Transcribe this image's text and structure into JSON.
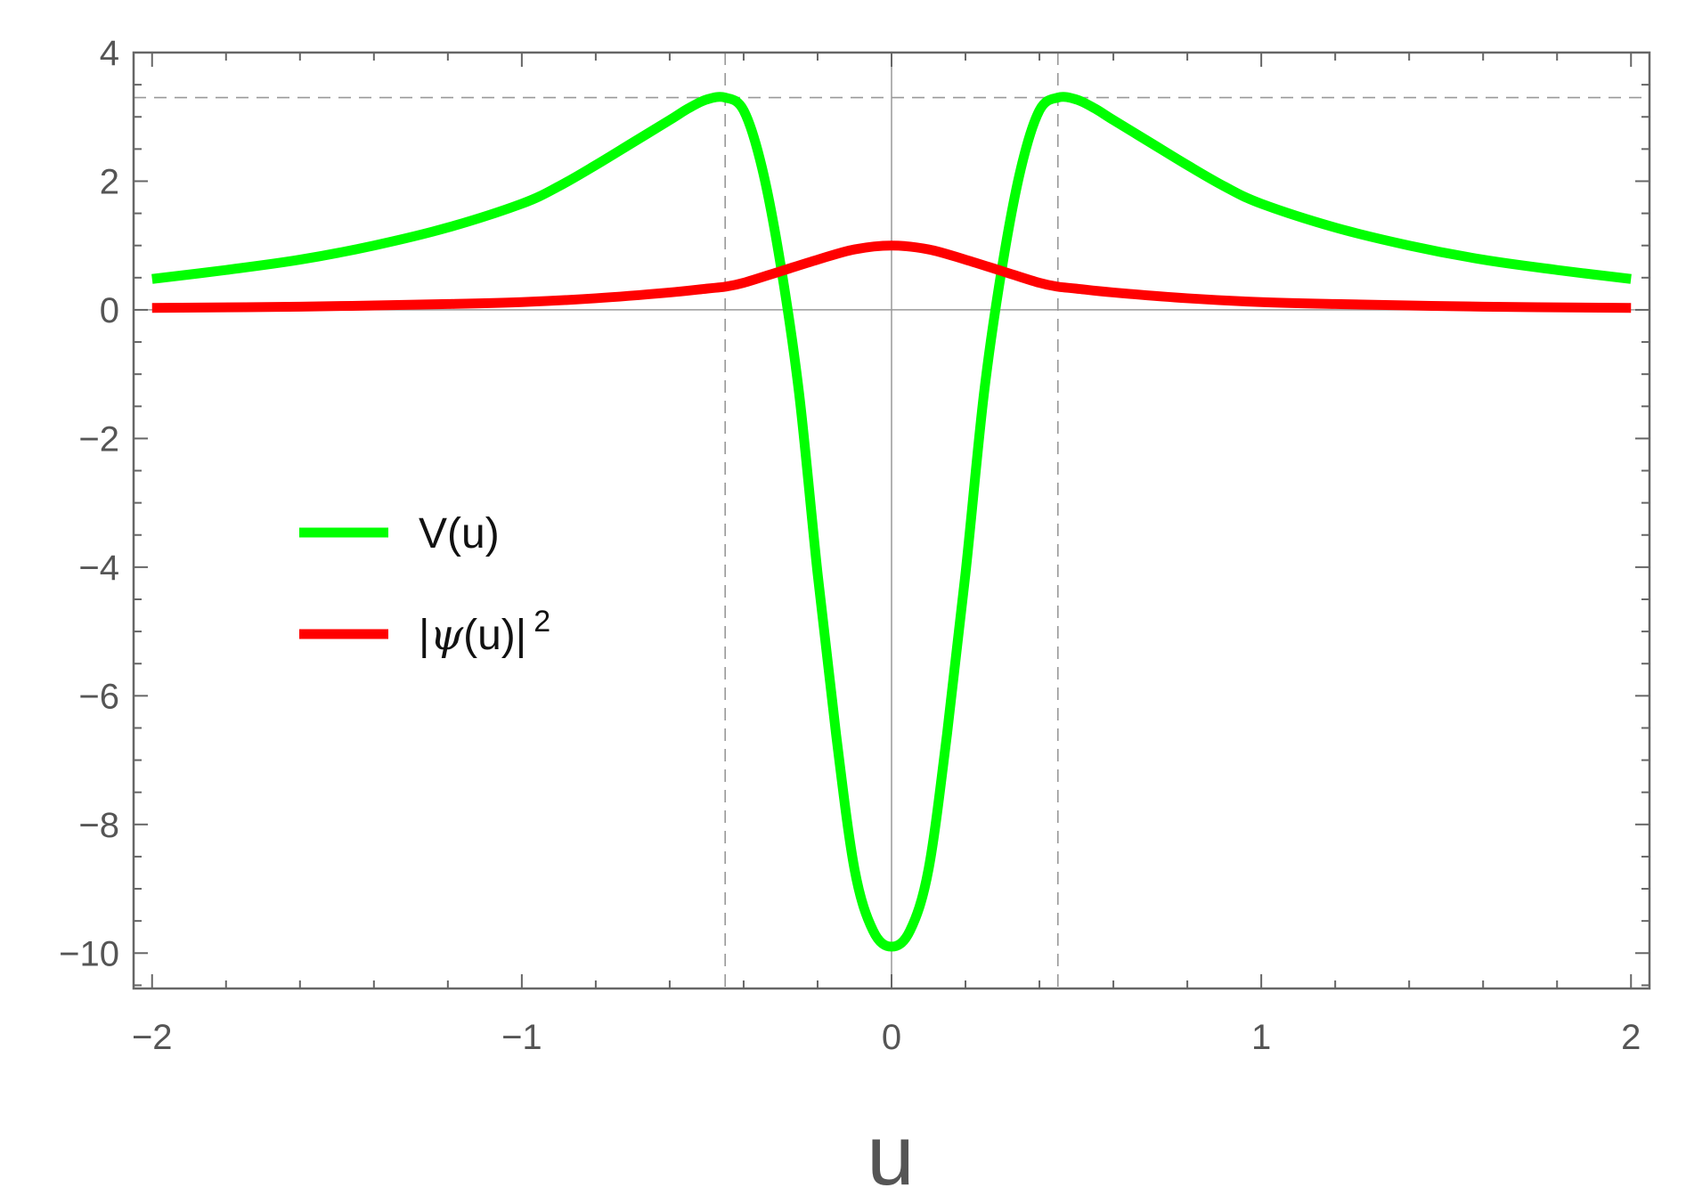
{
  "chart_data": {
    "type": "line",
    "xlabel": "u",
    "ylabel": "",
    "xlim": [
      -2.05,
      2.05
    ],
    "ylim": [
      -10.55,
      4.0
    ],
    "x_ticks": [
      -2,
      -1,
      0,
      1,
      2
    ],
    "x_tick_labels": [
      "−2",
      "−1",
      "0",
      "1",
      "2"
    ],
    "y_ticks": [
      4,
      2,
      0,
      -2,
      -4,
      -6,
      -8,
      -10
    ],
    "y_tick_labels": [
      "4",
      "2",
      "0",
      "−2",
      "−4",
      "−6",
      "−8",
      "−10"
    ],
    "x_minor_step": 0.2,
    "y_minor_step": 0.5,
    "grid": false,
    "legend": {
      "position": "center-left",
      "entries": [
        {
          "label": "V(u)",
          "color": "#00ff00"
        },
        {
          "label_parts": [
            "|",
            "ψ",
            "(u)|",
            "2"
          ],
          "color": "#ff0000"
        }
      ]
    },
    "reference_lines": {
      "vertical_x": [
        -0.45,
        0.45
      ],
      "horizontal_y": [
        3.3
      ],
      "style": "dashed",
      "color": "#999999"
    },
    "series": [
      {
        "color": "#00ff00",
        "x": [
          -2.0,
          -1.8,
          -1.6,
          -1.4,
          -1.2,
          -1.0,
          -0.9,
          -0.8,
          -0.7,
          -0.6,
          -0.55,
          -0.5,
          -0.45,
          -0.4,
          -0.35,
          -0.3,
          -0.25,
          -0.2,
          -0.15,
          -0.1,
          -0.05,
          0.0,
          0.05,
          0.1,
          0.15,
          0.2,
          0.25,
          0.3,
          0.35,
          0.4,
          0.45,
          0.5,
          0.55,
          0.6,
          0.7,
          0.8,
          0.9,
          1.0,
          1.2,
          1.4,
          1.6,
          1.8,
          2.0
        ],
        "y": [
          0.48,
          0.62,
          0.78,
          1.0,
          1.28,
          1.65,
          1.92,
          2.25,
          2.6,
          2.95,
          3.13,
          3.27,
          3.3,
          3.1,
          2.2,
          0.7,
          -1.3,
          -4.1,
          -6.6,
          -8.7,
          -9.65,
          -9.9,
          -9.65,
          -8.7,
          -6.6,
          -4.1,
          -1.3,
          0.7,
          2.2,
          3.1,
          3.3,
          3.27,
          3.13,
          2.95,
          2.6,
          2.25,
          1.92,
          1.65,
          1.28,
          1.0,
          0.78,
          0.62,
          0.48
        ]
      },
      {
        "color": "#ff0000",
        "x": [
          -2.0,
          -1.6,
          -1.2,
          -1.0,
          -0.8,
          -0.6,
          -0.5,
          -0.45,
          -0.4,
          -0.3,
          -0.2,
          -0.1,
          0.0,
          0.1,
          0.2,
          0.3,
          0.4,
          0.45,
          0.5,
          0.6,
          0.8,
          1.0,
          1.2,
          1.6,
          2.0
        ],
        "y": [
          0.03,
          0.05,
          0.09,
          0.12,
          0.18,
          0.27,
          0.33,
          0.36,
          0.42,
          0.6,
          0.78,
          0.94,
          1.0,
          0.94,
          0.78,
          0.6,
          0.42,
          0.36,
          0.33,
          0.27,
          0.18,
          0.12,
          0.09,
          0.05,
          0.03
        ]
      }
    ]
  }
}
